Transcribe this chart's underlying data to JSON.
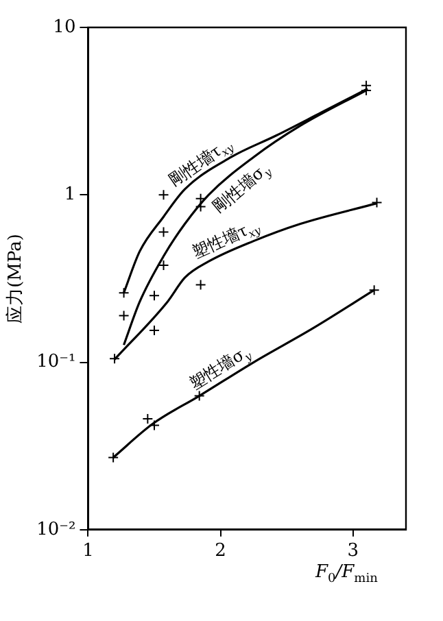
{
  "chart_data": {
    "type": "line",
    "ylabel": "应力(MPa)",
    "xlabel": "F$_{0}$/F$_{min}$",
    "log": "y",
    "xlim": [
      1,
      3.4
    ],
    "xticks": [
      1,
      2,
      3
    ],
    "ylim": [
      0.01,
      10
    ],
    "yticks": [
      {
        "value": 0.01,
        "label": "10⁻²"
      },
      {
        "value": 0.1,
        "label": "10⁻¹"
      },
      1,
      10
    ],
    "marker": "none",
    "legend": false,
    "series": [
      {
        "name": "剛性墻τ$_{xy}$",
        "color": "#000000",
        "x": [
          1.27,
          1.39,
          1.57,
          1.73,
          2.08,
          2.42,
          2.76,
          3.11
        ],
        "values": [
          0.26,
          0.46,
          0.74,
          1.08,
          1.68,
          2.26,
          3.1,
          4.3
        ]
      },
      {
        "name": "剛性墻σ$_{y}$",
        "color": "#000000",
        "x": [
          1.27,
          1.39,
          1.57,
          1.73,
          1.91,
          2.25,
          2.6,
          3.11
        ],
        "values": [
          0.127,
          0.23,
          0.43,
          0.67,
          1.0,
          1.68,
          2.58,
          4.25
        ]
      },
      {
        "name": "塑性墻τ$_{xy}$",
        "color": "#000000",
        "x": [
          1.2,
          1.6,
          1.73,
          1.91,
          2.25,
          2.6,
          3.18
        ],
        "values": [
          0.104,
          0.23,
          0.32,
          0.4,
          0.53,
          0.67,
          0.89
        ]
      },
      {
        "name": "塑性墻σ$_{y}$",
        "color": "#000000",
        "x": [
          1.19,
          1.49,
          1.84,
          2.25,
          2.7,
          3.16
        ],
        "values": [
          0.027,
          0.043,
          0.063,
          0.1,
          0.16,
          0.27
        ]
      },
      {
        "type": "scatter",
        "marker": "cross",
        "color": "#000000",
        "x": [
          1.27,
          1.57,
          1.57,
          1.57,
          1.5,
          1.5,
          1.85,
          1.85,
          1.85,
          1.2,
          1.27,
          3.1,
          3.1,
          3.18,
          1.19,
          1.45,
          1.5,
          1.84,
          3.16
        ],
        "values": [
          0.26,
          1.0,
          0.6,
          0.38,
          0.25,
          0.155,
          0.95,
          0.85,
          0.29,
          0.105,
          0.19,
          4.5,
          4.2,
          0.9,
          0.027,
          0.046,
          0.042,
          0.063,
          0.27
        ]
      }
    ]
  }
}
